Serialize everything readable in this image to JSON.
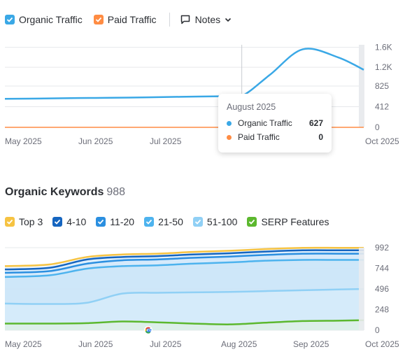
{
  "traffic_legend": {
    "organic": {
      "label": "Organic Traffic",
      "color": "#3aa8e6",
      "checked": true
    },
    "paid": {
      "label": "Paid Traffic",
      "color": "#ff8c43",
      "checked": true
    },
    "notes_label": "Notes",
    "notes_icon": "speech-bubble-icon",
    "notes_chevron_icon": "chevron-down-icon"
  },
  "tooltip": {
    "title": "August 2025",
    "rows": [
      {
        "label": "Organic Traffic",
        "value": "627",
        "color": "#3aa8e6"
      },
      {
        "label": "Paid Traffic",
        "value": "0",
        "color": "#ff8c43"
      }
    ]
  },
  "keywords": {
    "title": "Organic Keywords",
    "count": "988",
    "legend": [
      {
        "label": "Top 3",
        "color": "#f6c342",
        "checked": true
      },
      {
        "label": "4-10",
        "color": "#1565c0",
        "checked": true
      },
      {
        "label": "11-20",
        "color": "#2b8fe0",
        "checked": true
      },
      {
        "label": "21-50",
        "color": "#4db3ee",
        "checked": true
      },
      {
        "label": "51-100",
        "color": "#90d0f5",
        "checked": true
      },
      {
        "label": "SERP Features",
        "color": "#5cb82e",
        "checked": true
      }
    ]
  },
  "chart_data": [
    {
      "type": "line",
      "x": [
        "2025-05-01",
        "2025-05-15",
        "2025-06-01",
        "2025-06-15",
        "2025-07-01",
        "2025-07-15",
        "2025-08-01",
        "2025-08-10",
        "2025-08-22",
        "2025-09-05",
        "2025-09-20",
        "2025-10-01"
      ],
      "x_ticks": [
        "May 2025",
        "Jun 2025",
        "Jul 2025",
        "Oct 2025"
      ],
      "series": [
        {
          "name": "Organic Traffic",
          "color": "#3aa8e6",
          "values": [
            570,
            575,
            585,
            590,
            600,
            610,
            620,
            627,
            1050,
            1560,
            1400,
            1150
          ]
        },
        {
          "name": "Paid Traffic",
          "color": "#ff8c43",
          "values": [
            0,
            0,
            0,
            0,
            0,
            0,
            0,
            0,
            0,
            0,
            0,
            0
          ]
        }
      ],
      "y_ticks": [
        "1.6K",
        "1.2K",
        "825",
        "412",
        "0"
      ],
      "ylim": [
        0,
        1650
      ],
      "highlight_x": "2025-08-10",
      "grid": true
    },
    {
      "type": "area",
      "x": [
        "2025-05-01",
        "2025-05-20",
        "2025-06-05",
        "2025-06-20",
        "2025-07-05",
        "2025-07-20",
        "2025-08-05",
        "2025-08-20",
        "2025-09-05",
        "2025-09-20",
        "2025-10-01"
      ],
      "x_ticks": [
        "May 2025",
        "Jun 2025",
        "Jul 2025",
        "Aug 2025",
        "Sep 2025",
        "Oct 2025"
      ],
      "series": [
        {
          "name": "Top 3",
          "color": "#f6c342",
          "values": [
            770,
            790,
            880,
            910,
            920,
            940,
            955,
            975,
            990,
            990,
            990
          ]
        },
        {
          "name": "4-10",
          "color": "#1565c0",
          "values": [
            730,
            750,
            850,
            880,
            890,
            910,
            925,
            945,
            960,
            960,
            960
          ]
        },
        {
          "name": "11-20",
          "color": "#2b8fe0",
          "values": [
            690,
            710,
            800,
            840,
            850,
            870,
            885,
            905,
            920,
            920,
            920
          ]
        },
        {
          "name": "21-50",
          "color": "#4db3ee",
          "values": [
            640,
            660,
            740,
            770,
            780,
            800,
            815,
            835,
            845,
            845,
            845
          ]
        },
        {
          "name": "51-100",
          "color": "#90d0f5",
          "values": [
            320,
            315,
            330,
            440,
            450,
            455,
            460,
            470,
            480,
            490,
            495
          ]
        },
        {
          "name": "SERP Features",
          "color": "#5cb82e",
          "values": [
            80,
            80,
            85,
            105,
            95,
            80,
            70,
            90,
            110,
            115,
            120
          ]
        }
      ],
      "y_ticks": [
        "992",
        "744",
        "496",
        "248",
        "0"
      ],
      "ylim": [
        0,
        992
      ],
      "annotation_icon": "google-icon",
      "grid": true
    }
  ]
}
